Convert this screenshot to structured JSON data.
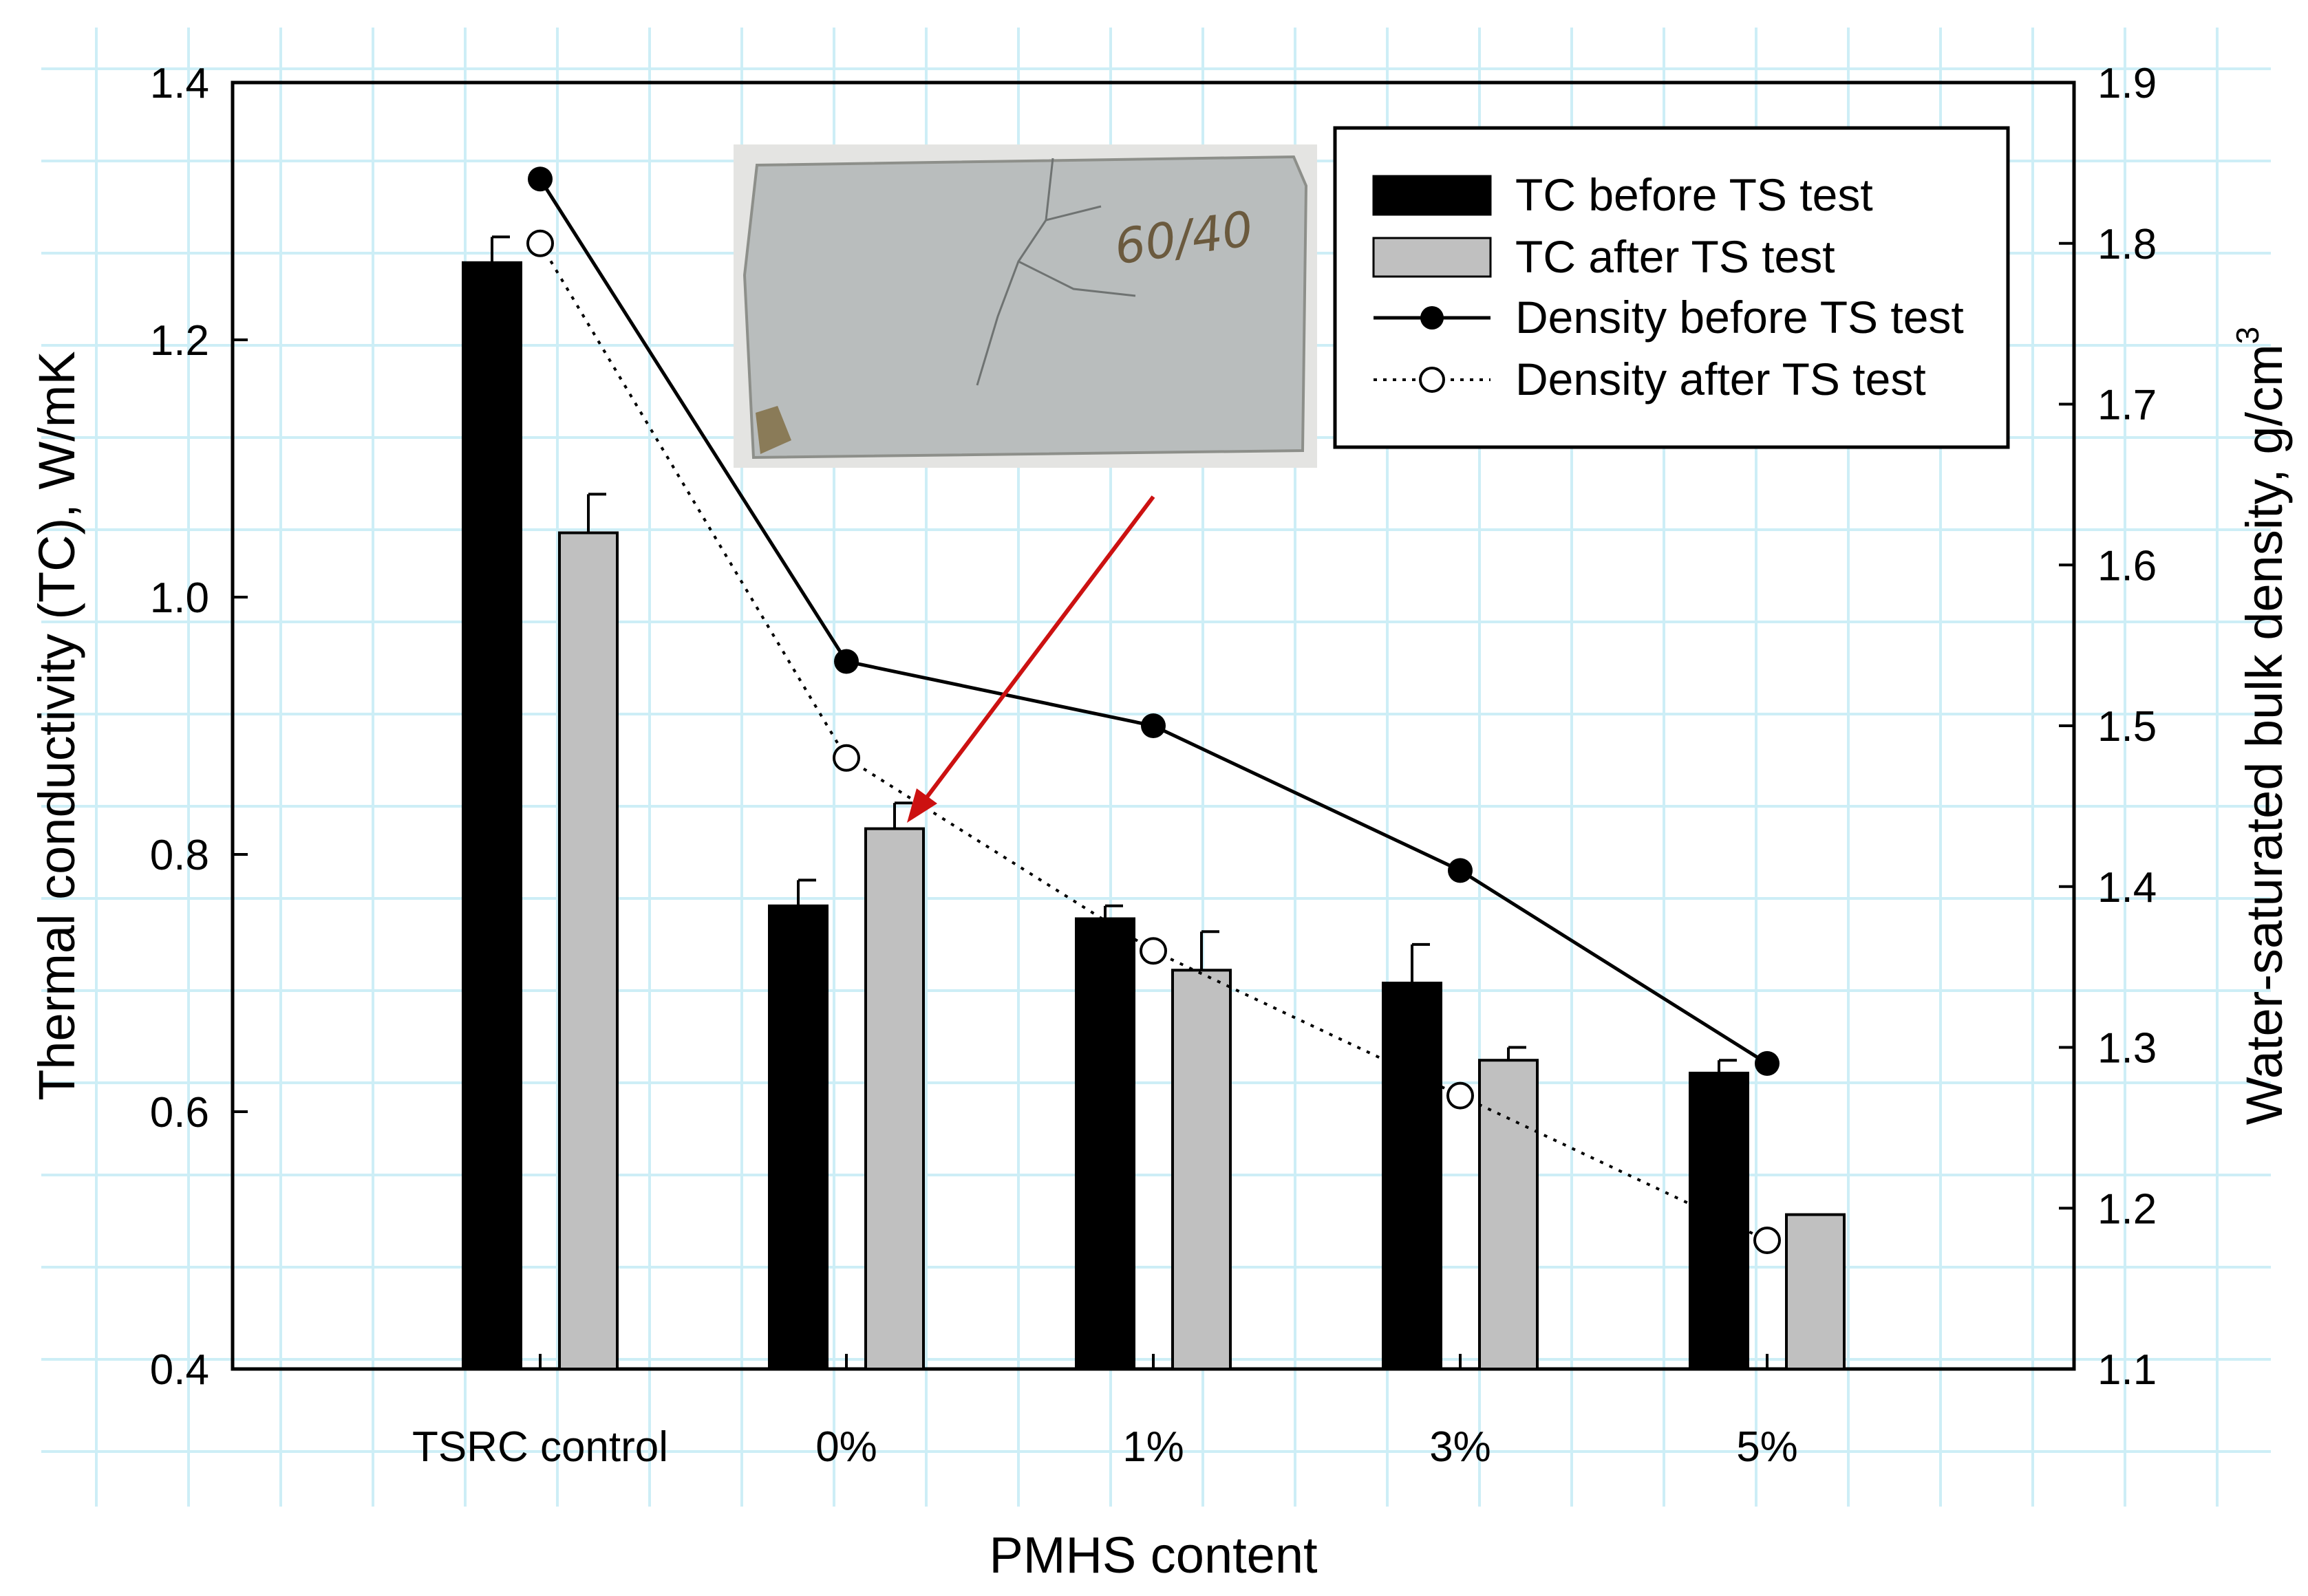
{
  "chart_data": {
    "type": "bar",
    "xlabel": "PMHS content",
    "ylabel": "Thermal conductivity (TC),  W/mK",
    "y2label": "Water-saturated bulk density, g/cm",
    "y2label_sup": "3",
    "categories": [
      "TSRC control",
      "0%",
      "1%",
      "3%",
      "5%"
    ],
    "ylim": [
      0.4,
      1.4
    ],
    "y2lim": [
      1.1,
      1.9
    ],
    "yticks": [
      "0.4",
      "0.6",
      "0.8",
      "1.0",
      "1.2",
      "1.4"
    ],
    "y2ticks": [
      "1.1",
      "1.2",
      "1.3",
      "1.4",
      "1.5",
      "1.6",
      "1.7",
      "1.8",
      "1.9"
    ],
    "grid": true,
    "legend_position": "top-right",
    "bar_series": [
      {
        "name": "TC before TS test",
        "color": "#000000",
        "values": [
          1.26,
          0.76,
          0.75,
          0.7,
          0.63
        ],
        "errors": [
          0.02,
          0.02,
          0.01,
          0.03,
          0.01
        ]
      },
      {
        "name": "TC after TS test",
        "color": "#c0c0c0",
        "values": [
          1.05,
          0.82,
          0.71,
          0.64,
          0.52
        ],
        "errors": [
          0.03,
          0.02,
          0.03,
          0.01,
          0.0
        ]
      }
    ],
    "line_series": [
      {
        "name": "Density before TS test",
        "style": "solid",
        "marker": "filled-circle",
        "values": [
          1.84,
          1.54,
          1.5,
          1.41,
          1.29
        ]
      },
      {
        "name": "Density after TS test",
        "style": "dotted",
        "marker": "open-circle",
        "values": [
          1.8,
          1.48,
          1.36,
          1.27,
          1.18
        ]
      }
    ],
    "inset_photo": {
      "label": "60/40",
      "color_bg": "#b9bdbd"
    },
    "annotation_arrow_color": "#cc1111"
  }
}
